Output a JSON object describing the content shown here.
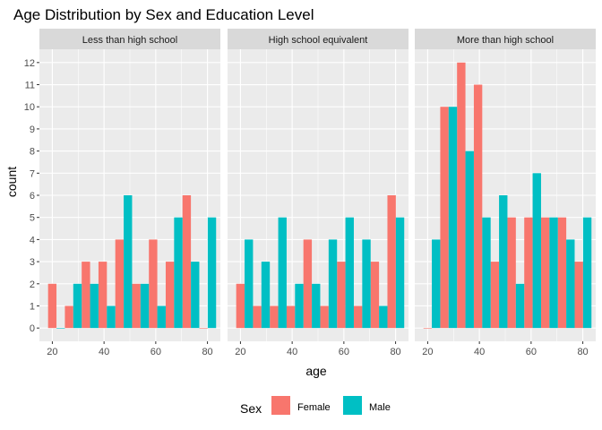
{
  "chart_data": {
    "type": "bar",
    "title": "Age Distribution by Sex and Education Level",
    "xlabel": "age",
    "ylabel": "count",
    "xlim": [
      15,
      85
    ],
    "ylim": [
      -0.6,
      12.6
    ],
    "x_ticks": [
      20,
      40,
      60,
      80
    ],
    "x_tick_labels": [
      "20",
      "40",
      "60",
      "80"
    ],
    "y_ticks": [
      0,
      1,
      2,
      3,
      4,
      5,
      6,
      7,
      8,
      9,
      10,
      11,
      12
    ],
    "y_tick_labels": [
      "0",
      "1",
      "2",
      "3",
      "4",
      "5",
      "6",
      "7",
      "8",
      "9",
      "10",
      "11",
      "12"
    ],
    "bin_width": 6.5,
    "bin_centers": [
      21.6,
      28.1,
      34.6,
      41.1,
      47.6,
      54.1,
      60.6,
      67.1,
      73.6,
      80.1
    ],
    "grid": true,
    "legend": {
      "title": "Sex",
      "position": "bottom",
      "entries": [
        {
          "name": "Female",
          "color": "#F8766D"
        },
        {
          "name": "Male",
          "color": "#00BFC4"
        }
      ]
    },
    "panels": [
      {
        "name": "Less than high school",
        "series": [
          {
            "name": "Female",
            "values": [
              2,
              1,
              3,
              3,
              4,
              2,
              4,
              3,
              6,
              0
            ]
          },
          {
            "name": "Male",
            "values": [
              0,
              2,
              2,
              1,
              6,
              2,
              1,
              5,
              3,
              5
            ]
          }
        ]
      },
      {
        "name": "High school equivalent",
        "series": [
          {
            "name": "Female",
            "values": [
              2,
              1,
              1,
              1,
              4,
              1,
              3,
              1,
              3,
              6
            ]
          },
          {
            "name": "Male",
            "values": [
              4,
              3,
              5,
              2,
              2,
              4,
              5,
              4,
              1,
              5
            ]
          }
        ]
      },
      {
        "name": "More than high school",
        "series": [
          {
            "name": "Female",
            "values": [
              0,
              10,
              12,
              11,
              3,
              5,
              5,
              5,
              5,
              3
            ]
          },
          {
            "name": "Male",
            "values": [
              4,
              10,
              8,
              5,
              6,
              2,
              7,
              5,
              4,
              5
            ]
          }
        ]
      }
    ]
  },
  "colors": {
    "panel_background": "#EBEBEB",
    "strip_background": "#D9D9D9",
    "grid_major": "#FFFFFF",
    "tick": "#333333"
  }
}
